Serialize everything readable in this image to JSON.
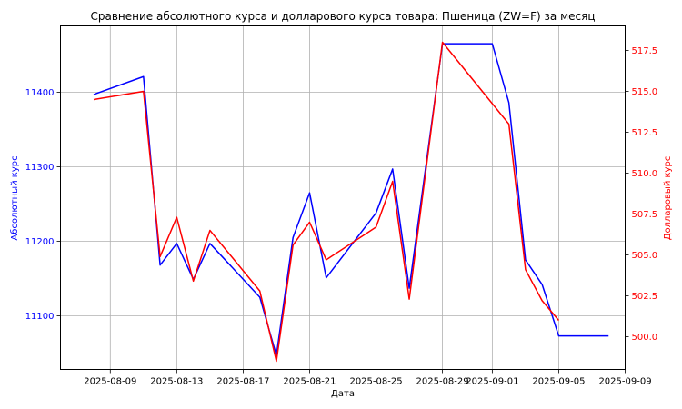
{
  "chart_data": {
    "type": "line",
    "title": "Сравнение абсолютного курса и долларового курса товара: Пшеница (ZW=F) за месяц",
    "xlabel": "Дата",
    "ylabel_left": "Абсолютный курс",
    "ylabel_right": "Долларовый курс",
    "x_ticks": [
      "2025-08-09",
      "2025-08-13",
      "2025-08-17",
      "2025-08-21",
      "2025-08-25",
      "2025-08-29",
      "2025-09-01",
      "2025-09-05",
      "2025-09-09"
    ],
    "y_left_ticks": [
      11100,
      11200,
      11300,
      11400
    ],
    "y_right_ticks": [
      "500.0",
      "502.5",
      "505.0",
      "507.5",
      "510.0",
      "512.5",
      "515.0",
      "517.5"
    ],
    "xlim": [
      "2025-08-06",
      "2025-09-09"
    ],
    "ylim_left": [
      11028,
      11489
    ],
    "ylim_right": [
      498.0,
      519.0
    ],
    "grid": true,
    "colors": {
      "left": "#0000ff",
      "right": "#ff0000"
    },
    "series": [
      {
        "axis": "left",
        "color": "#0000ff",
        "points": [
          [
            "2025-08-08",
            11397
          ],
          [
            "2025-08-11",
            11421
          ],
          [
            "2025-08-12",
            11168
          ],
          [
            "2025-08-13",
            11197
          ],
          [
            "2025-08-14",
            11149
          ],
          [
            "2025-08-15",
            11197
          ],
          [
            "2025-08-18",
            11125
          ],
          [
            "2025-08-19",
            11047
          ],
          [
            "2025-08-20",
            11205
          ],
          [
            "2025-08-21",
            11265
          ],
          [
            "2025-08-22",
            11151
          ],
          [
            "2025-08-25",
            11238
          ],
          [
            "2025-08-26",
            11297
          ],
          [
            "2025-08-27",
            11137
          ],
          [
            "2025-08-29",
            11465
          ],
          [
            "2025-08-30",
            11465
          ],
          [
            "2025-08-31",
            11465
          ],
          [
            "2025-09-01",
            11465
          ],
          [
            "2025-09-02",
            11386
          ],
          [
            "2025-09-03",
            11175
          ],
          [
            "2025-09-04",
            11142
          ],
          [
            "2025-09-05",
            11073
          ],
          [
            "2025-09-06",
            11073
          ],
          [
            "2025-09-07",
            11073
          ],
          [
            "2025-09-08",
            11073
          ]
        ]
      },
      {
        "axis": "right",
        "color": "#ff0000",
        "points": [
          [
            "2025-08-08",
            514.5
          ],
          [
            "2025-08-11",
            515.0
          ],
          [
            "2025-08-12",
            504.9
          ],
          [
            "2025-08-13",
            507.3
          ],
          [
            "2025-08-14",
            503.4
          ],
          [
            "2025-08-15",
            506.5
          ],
          [
            "2025-08-18",
            502.8
          ],
          [
            "2025-08-19",
            498.5
          ],
          [
            "2025-08-20",
            505.6
          ],
          [
            "2025-08-21",
            507.0
          ],
          [
            "2025-08-22",
            504.7
          ],
          [
            "2025-08-25",
            506.7
          ],
          [
            "2025-08-26",
            509.5
          ],
          [
            "2025-08-27",
            502.3
          ],
          [
            "2025-08-29",
            518.0
          ],
          [
            "2025-09-02",
            513.0
          ],
          [
            "2025-09-03",
            504.1
          ],
          [
            "2025-09-04",
            502.2
          ],
          [
            "2025-09-05",
            501.0
          ]
        ]
      }
    ]
  }
}
